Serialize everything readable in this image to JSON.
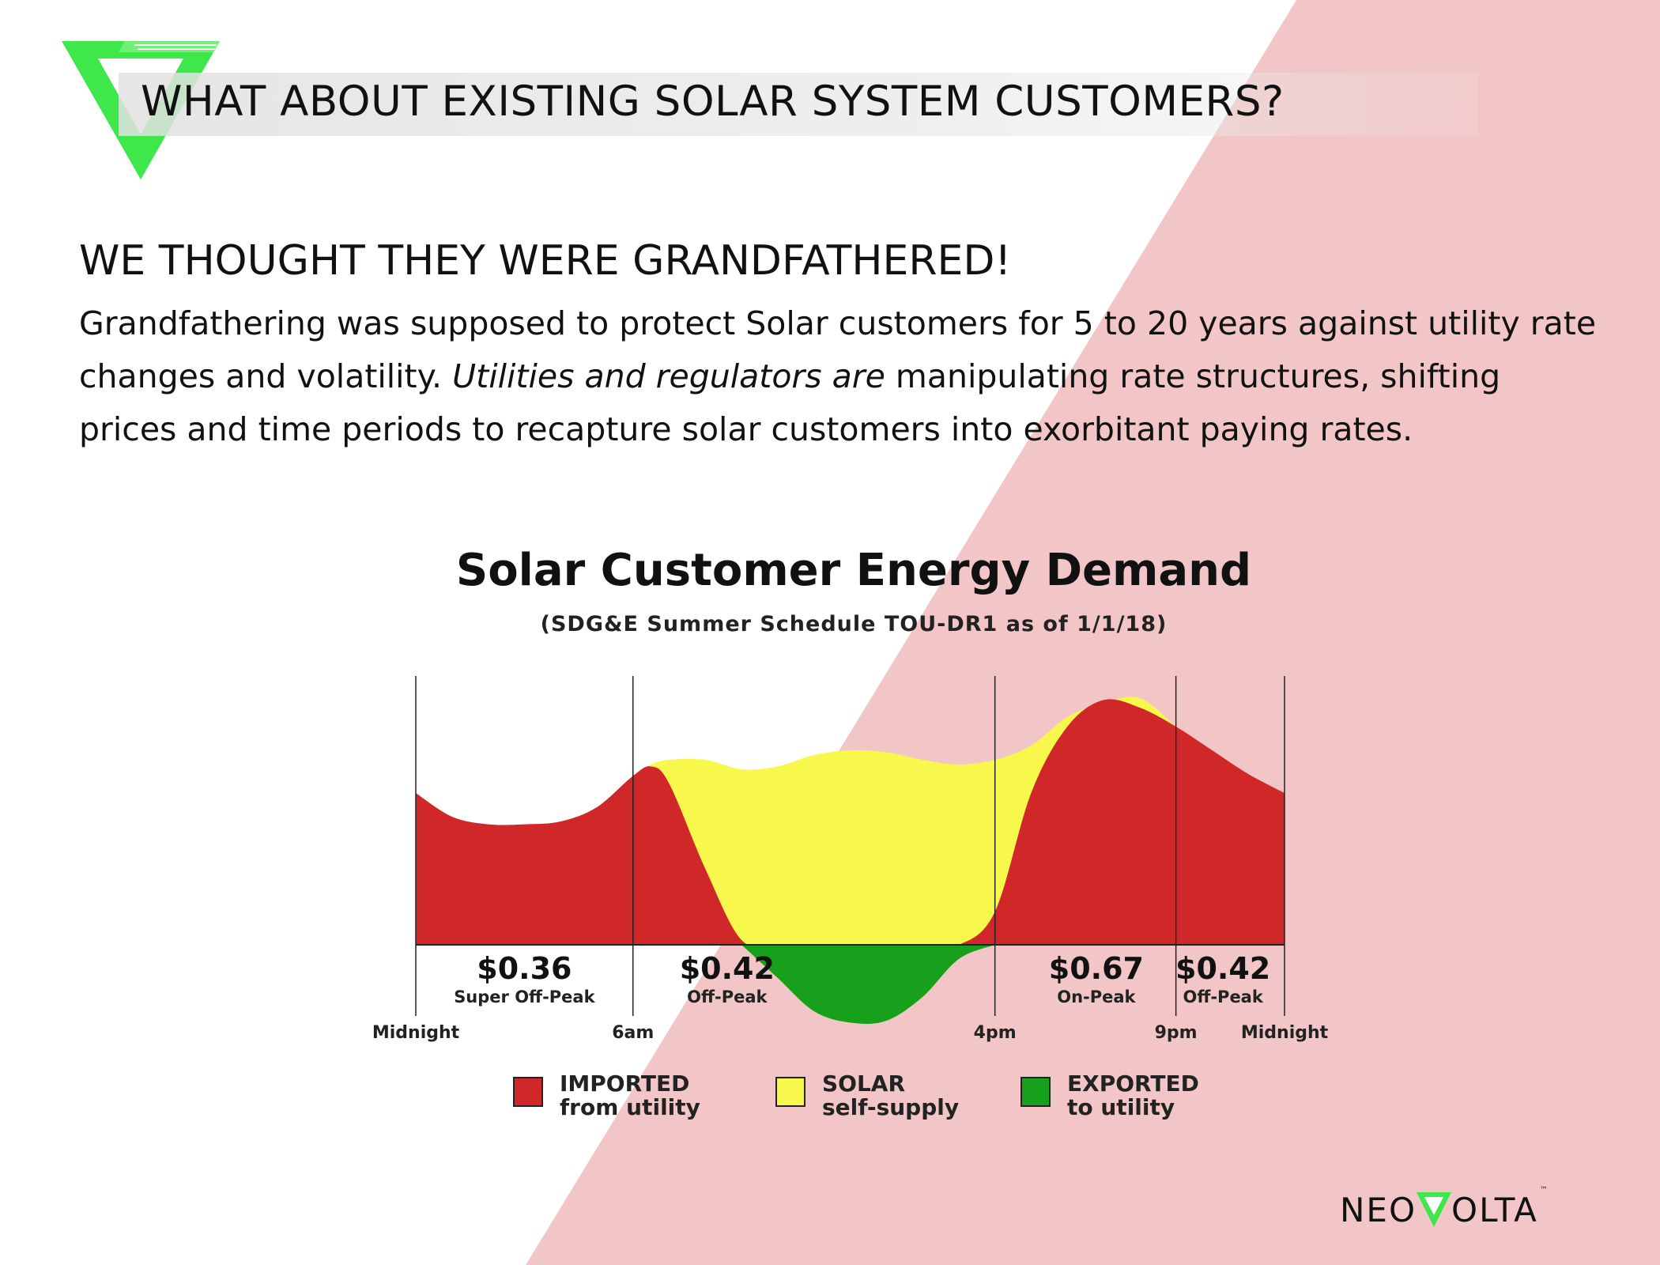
{
  "page": {
    "title": "WHAT ABOUT EXISTING SOLAR SYSTEM CUSTOMERS?",
    "subheading": "WE THOUGHT THEY WERE GRANDFATHERED!",
    "paragraph": {
      "part1": "Grandfathering was supposed to protect Solar customers for 5 to 20 years against utility rate changes and volatility. ",
      "italic": "Utilities and regulators are",
      "part2": " manipulating rate structures, shifting prices and time periods to recapture solar customers into exorbitant paying rates."
    }
  },
  "brand": {
    "name_left": "NEO",
    "name_right": "OLTA",
    "trademark": "™",
    "logo": "neovolta-v-logo"
  },
  "colors": {
    "imported": "#d02728",
    "solar": "#f8f84c",
    "exported": "#16a01b",
    "background_diagonal": "#f2c6c6",
    "brand_green": "#3ee84b"
  },
  "chart_data": {
    "type": "area",
    "title": "Solar Customer Energy Demand",
    "subtitle": "(SDG&E Summer Schedule TOU-DR1 as of 1/1/18)",
    "x_labels": [
      "Midnight",
      "6am",
      "4pm",
      "9pm",
      "Midnight"
    ],
    "x_hours": [
      0,
      6,
      16,
      21,
      24
    ],
    "periods": [
      {
        "start": 0,
        "end": 6,
        "price": "$0.36",
        "label": "Super Off-Peak"
      },
      {
        "start": 6,
        "end": 10,
        "price": "$0.42",
        "label": "Off-Peak"
      },
      {
        "start": 16,
        "end": 21,
        "price": "$0.67",
        "label": "On-Peak"
      },
      {
        "start": 21,
        "end": 24,
        "price": "$0.42",
        "label": "Off-Peak"
      }
    ],
    "series": [
      {
        "name": "IMPORTED from utility",
        "x": [
          0,
          1,
          2,
          3,
          4,
          5,
          6,
          6.5,
          7,
          8,
          9,
          10,
          11,
          12,
          13,
          14,
          15,
          16,
          17,
          18,
          19,
          20,
          21,
          22,
          23,
          24
        ],
        "values": [
          1.6,
          1.35,
          1.27,
          1.27,
          1.3,
          1.45,
          1.78,
          1.88,
          1.7,
          0.8,
          0.05,
          0,
          0,
          0,
          0,
          0,
          0,
          0.35,
          1.6,
          2.3,
          2.58,
          2.5,
          2.3,
          2.05,
          1.8,
          1.6
        ]
      },
      {
        "name": "SOLAR self-supply",
        "x": [
          6,
          6.5,
          7,
          8,
          9,
          10,
          11,
          12,
          13,
          14,
          15,
          16,
          17,
          18,
          19,
          20,
          21
        ],
        "values": [
          1.78,
          1.9,
          1.95,
          1.95,
          1.85,
          1.88,
          2.0,
          2.05,
          2.03,
          1.95,
          1.9,
          1.95,
          2.1,
          2.4,
          2.55,
          2.6,
          2.3
        ]
      },
      {
        "name": "EXPORTED to utility",
        "x": [
          9,
          10,
          11,
          12,
          13,
          14,
          15,
          16
        ],
        "values": [
          0,
          -0.35,
          -0.7,
          -0.82,
          -0.8,
          -0.55,
          -0.15,
          0
        ]
      }
    ],
    "legend": [
      {
        "line1": "IMPORTED",
        "line2": "from utility"
      },
      {
        "line1": "SOLAR",
        "line2": "self-supply"
      },
      {
        "line1": "EXPORTED",
        "line2": "to utility"
      }
    ],
    "legend_position": "bottom"
  }
}
